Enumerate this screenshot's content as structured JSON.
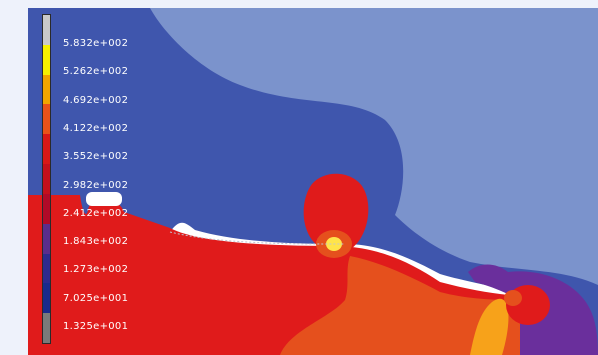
{
  "legend": {
    "labels": [
      "5.832e+002",
      "5.262e+002",
      "4.692e+002",
      "4.122e+002",
      "3.552e+002",
      "2.982e+002",
      "2.412e+002",
      "1.843e+002",
      "1.273e+002",
      "7.025e+001",
      "1.325e+001"
    ],
    "colors": [
      "#c9c9c9",
      "#f6f000",
      "#f1a500",
      "#e9521a",
      "#d81818",
      "#c4101c",
      "#b00a28",
      "#5a2d8c",
      "#2d2a8e",
      "#1a2a8c",
      "#7a7a7a"
    ]
  },
  "field_colors": {
    "background": "#eef2fb",
    "upper_gas": "#7b93cc",
    "lower_gas": "#3f56ad",
    "liquid_hot": "#e01b1b",
    "liquid_warm": "#e5501d",
    "bright": "#f7a21a",
    "core": "#ffe44a",
    "purple": "#6a2f9c"
  }
}
